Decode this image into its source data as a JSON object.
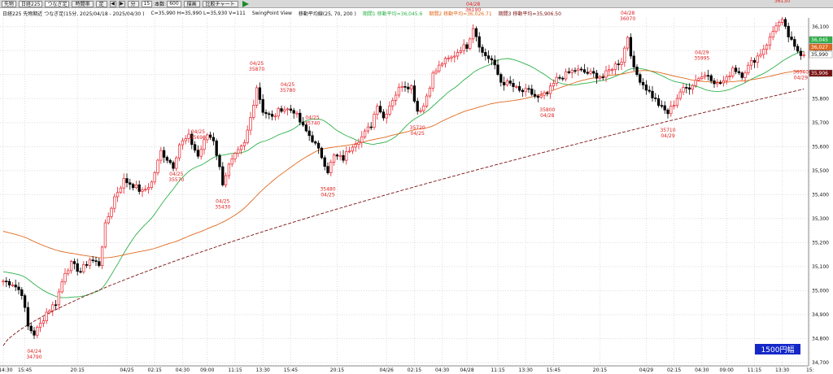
{
  "toolbar": {
    "symbol_select": "先物",
    "index_select": "日経225",
    "kind_select": "つなぎ足",
    "btn_scroll": "時間帯",
    "btn_foot": "足",
    "btn_min": "分",
    "minutes_value": "15",
    "count_label": "本数",
    "count_value": "600",
    "btn_draw": "描画",
    "btn_compare": "比較チャート",
    "icon_prev": "◀",
    "icon_next": "▶"
  },
  "info": {
    "series_label": "日経225 先物期近 つなぎ足(15分, 2025/04/18 - 2025/04/30 )",
    "ohlcv": "C=35,990 H=35,990 L=35,930 V=111",
    "view_name": "SwingPoint View",
    "ma_label": "移動平均線(25, 70, 200 )",
    "ma1_label": "期間1 移動平均=36,045.6",
    "ma2_label": "期間2 移動平均=36,026.71",
    "ma3_label": "期間3 移動平均=35,906.50"
  },
  "range_badge": "1500円幅",
  "colors": {
    "up_candle": "#e8202a",
    "down_candle": "#000000",
    "ma1": "#2fb14a",
    "ma2": "#e06a20",
    "ma3": "#7a1010",
    "badge": "#1428c8"
  },
  "chart_data": {
    "type": "candlestick",
    "ylim": [
      34700,
      36150
    ],
    "y_ticks": [
      34700,
      34800,
      34900,
      35000,
      35100,
      35200,
      35300,
      35400,
      35500,
      35600,
      35700,
      35800,
      35900,
      36000,
      36100
    ],
    "y_tick_labels": [
      "34,700",
      "34,800",
      "34,900",
      "35,000",
      "35,100",
      "35,200",
      "35,300",
      "35,400",
      "35,500",
      "35,600",
      "35,700",
      "35,800",
      "35,900",
      "36,000",
      "36,100"
    ],
    "x_tick_labels": [
      {
        "label": "4 14:30",
        "bar": 0
      },
      {
        "label": "15:45",
        "bar": 7
      },
      {
        "label": "20:15",
        "bar": 24
      },
      {
        "label": "04/25",
        "bar": 40
      },
      {
        "label": "02:15",
        "bar": 49
      },
      {
        "label": "04:30",
        "bar": 58
      },
      {
        "label": "09:00",
        "bar": 66
      },
      {
        "label": "11:15",
        "bar": 75
      },
      {
        "label": "13:30",
        "bar": 84
      },
      {
        "label": "15:45",
        "bar": 93
      },
      {
        "label": "20:15",
        "bar": 108
      },
      {
        "label": "04/26",
        "bar": 124
      },
      {
        "label": "02:15",
        "bar": 133
      },
      {
        "label": "04:30",
        "bar": 142
      },
      {
        "label": "04/28",
        "bar": 150
      },
      {
        "label": "11:15",
        "bar": 160
      },
      {
        "label": "13:30",
        "bar": 169
      },
      {
        "label": "15:45",
        "bar": 178
      },
      {
        "label": "20:15",
        "bar": 193
      },
      {
        "label": "04/29",
        "bar": 208
      },
      {
        "label": "02:15",
        "bar": 217
      },
      {
        "label": "04:30",
        "bar": 226
      },
      {
        "label": "09:00",
        "bar": 234
      },
      {
        "label": "11:15",
        "bar": 243
      },
      {
        "label": "13:30",
        "bar": 252
      },
      {
        "label": "15:",
        "bar": 261
      }
    ],
    "anchors": [
      [
        0,
        35040
      ],
      [
        3,
        35030
      ],
      [
        6,
        34990
      ],
      [
        8,
        34850
      ],
      [
        10,
        34820
      ],
      [
        12,
        34860
      ],
      [
        14,
        34910
      ],
      [
        17,
        34950
      ],
      [
        20,
        35080
      ],
      [
        22,
        35110
      ],
      [
        25,
        35080
      ],
      [
        28,
        35130
      ],
      [
        31,
        35110
      ],
      [
        33,
        35270
      ],
      [
        36,
        35390
      ],
      [
        39,
        35460
      ],
      [
        42,
        35440
      ],
      [
        45,
        35410
      ],
      [
        48,
        35450
      ],
      [
        51,
        35580
      ],
      [
        55,
        35520
      ],
      [
        57,
        35610
      ],
      [
        60,
        35640
      ],
      [
        63,
        35560
      ],
      [
        66,
        35650
      ],
      [
        68,
        35630
      ],
      [
        71,
        35450
      ],
      [
        73,
        35520
      ],
      [
        75,
        35560
      ],
      [
        78,
        35610
      ],
      [
        80,
        35720
      ],
      [
        82,
        35850
      ],
      [
        84,
        35750
      ],
      [
        87,
        35720
      ],
      [
        90,
        35760
      ],
      [
        94,
        35750
      ],
      [
        97,
        35680
      ],
      [
        100,
        35630
      ],
      [
        103,
        35560
      ],
      [
        105,
        35500
      ],
      [
        107,
        35560
      ],
      [
        110,
        35550
      ],
      [
        113,
        35610
      ],
      [
        116,
        35640
      ],
      [
        119,
        35690
      ],
      [
        121,
        35780
      ],
      [
        123,
        35720
      ],
      [
        126,
        35800
      ],
      [
        129,
        35860
      ],
      [
        132,
        35850
      ],
      [
        134,
        35750
      ],
      [
        136,
        35770
      ],
      [
        139,
        35900
      ],
      [
        142,
        35950
      ],
      [
        145,
        35970
      ],
      [
        148,
        36010
      ],
      [
        150,
        36020
      ],
      [
        152,
        36100
      ],
      [
        155,
        35990
      ],
      [
        158,
        35960
      ],
      [
        161,
        35870
      ],
      [
        164,
        35860
      ],
      [
        167,
        35830
      ],
      [
        170,
        35830
      ],
      [
        173,
        35800
      ],
      [
        176,
        35820
      ],
      [
        179,
        35880
      ],
      [
        182,
        35900
      ],
      [
        185,
        35920
      ],
      [
        188,
        35910
      ],
      [
        191,
        35900
      ],
      [
        194,
        35890
      ],
      [
        197,
        35930
      ],
      [
        200,
        35960
      ],
      [
        202,
        36060
      ],
      [
        204,
        35920
      ],
      [
        207,
        35860
      ],
      [
        210,
        35810
      ],
      [
        213,
        35760
      ],
      [
        215,
        35740
      ],
      [
        217,
        35780
      ],
      [
        219,
        35830
      ],
      [
        222,
        35850
      ],
      [
        225,
        35890
      ],
      [
        228,
        35900
      ],
      [
        231,
        35860
      ],
      [
        234,
        35880
      ],
      [
        236,
        35930
      ],
      [
        239,
        35900
      ],
      [
        242,
        35950
      ],
      [
        245,
        35990
      ],
      [
        248,
        36050
      ],
      [
        250,
        36110
      ],
      [
        252,
        36120
      ],
      [
        254,
        36060
      ],
      [
        256,
        36010
      ],
      [
        258,
        35990
      ]
    ],
    "annotations": [
      {
        "bar": 10,
        "date": "04/24",
        "value": "34790",
        "pos": "below"
      },
      {
        "bar": 56,
        "date": "04/25",
        "value": "35570",
        "pos": "below"
      },
      {
        "bar": 63,
        "date": "04/25",
        "value": "35690",
        "pos": "above"
      },
      {
        "bar": 71,
        "date": "04/25",
        "value": "35430",
        "pos": "below"
      },
      {
        "bar": 82,
        "date": "04/25",
        "value": "35870",
        "pos": "above"
      },
      {
        "bar": 92,
        "date": "04/25",
        "value": "35780",
        "pos": "above"
      },
      {
        "bar": 100,
        "date": "04/25",
        "value": "35740",
        "pos": "above"
      },
      {
        "bar": 105,
        "date": "35480",
        "value": "04/25",
        "pos": "below"
      },
      {
        "bar": 134,
        "date": "35720",
        "value": "04/25",
        "pos": "below"
      },
      {
        "bar": 152,
        "date": "04/28",
        "value": "36190",
        "pos": "above"
      },
      {
        "bar": 176,
        "date": "35800",
        "value": "04/28",
        "pos": "below"
      },
      {
        "bar": 202,
        "date": "04/28",
        "value": "36070",
        "pos": "above"
      },
      {
        "bar": 215,
        "date": "35710",
        "value": "04/29",
        "pos": "below"
      },
      {
        "bar": 226,
        "date": "04/29",
        "value": "35995",
        "pos": "above"
      },
      {
        "bar": 252,
        "date": "04/29",
        "value": "36130",
        "pos": "above"
      },
      {
        "bar": 258,
        "date": "36040",
        "value": "04/29",
        "pos": "below"
      }
    ],
    "price_flags": [
      {
        "label": "36,045",
        "value": 36045,
        "color": "#2fb14a"
      },
      {
        "label": "36,027",
        "value": 36027,
        "color": "#e06a20"
      },
      {
        "label": "35,990",
        "value": 35990,
        "color": "#ffffff"
      },
      {
        "label": "35,906",
        "value": 35906,
        "color": "#7a1010"
      }
    ]
  }
}
